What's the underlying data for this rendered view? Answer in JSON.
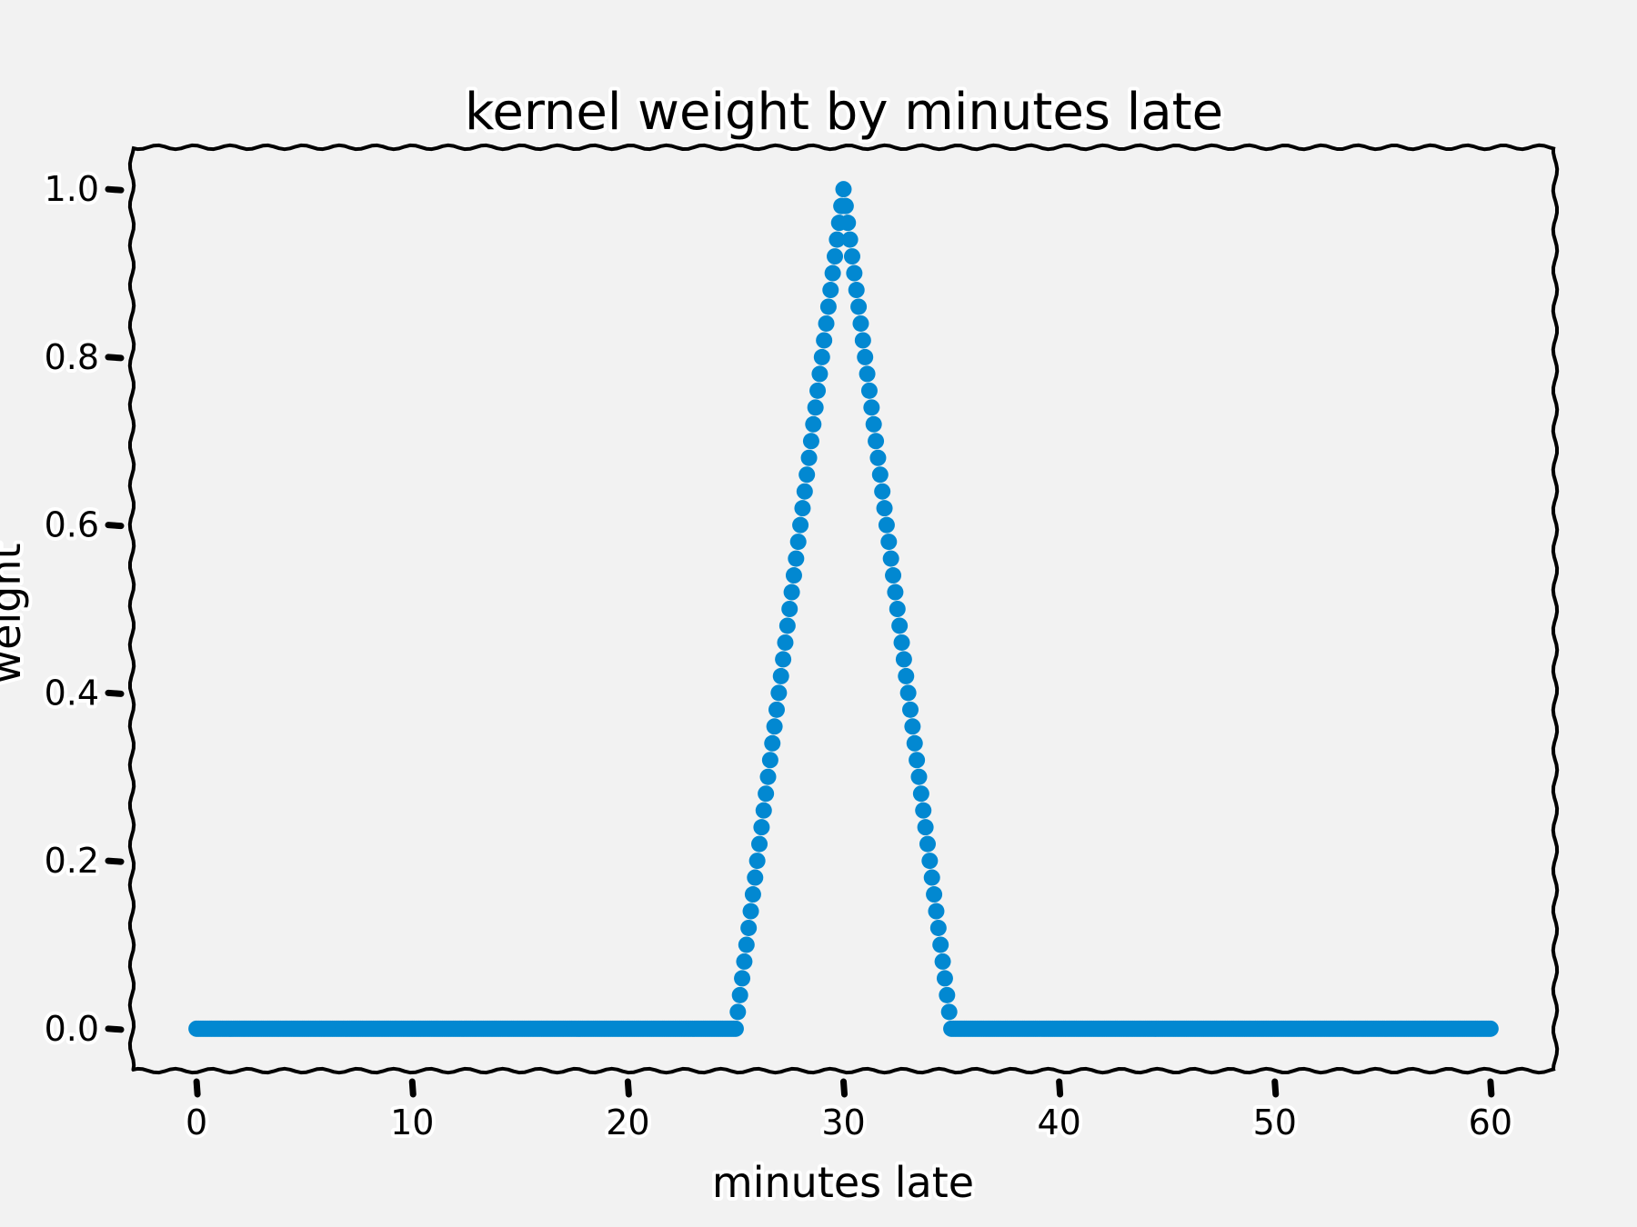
{
  "chart_data": {
    "type": "scatter",
    "title": "kernel weight by minutes late",
    "xlabel": "minutes late",
    "ylabel": "weight",
    "xlim": [
      -3,
      63
    ],
    "ylim": [
      -0.05,
      1.05
    ],
    "xticks": [
      0,
      10,
      20,
      30,
      40,
      50,
      60
    ],
    "xtick_labels": [
      "0",
      "10",
      "20",
      "30",
      "40",
      "50",
      "60"
    ],
    "yticks": [
      0.0,
      0.2,
      0.4,
      0.6,
      0.8,
      1.0
    ],
    "ytick_labels": [
      "0.0",
      "0.2",
      "0.4",
      "0.6",
      "0.8",
      "1.0"
    ],
    "grid": false,
    "kernel": {
      "type": "triangular",
      "center": 30,
      "half_width": 5,
      "peak": 1.0
    },
    "x_range": [
      0,
      60
    ],
    "x_step": 0.1,
    "series": [
      {
        "color": "#0288d1"
      }
    ]
  }
}
